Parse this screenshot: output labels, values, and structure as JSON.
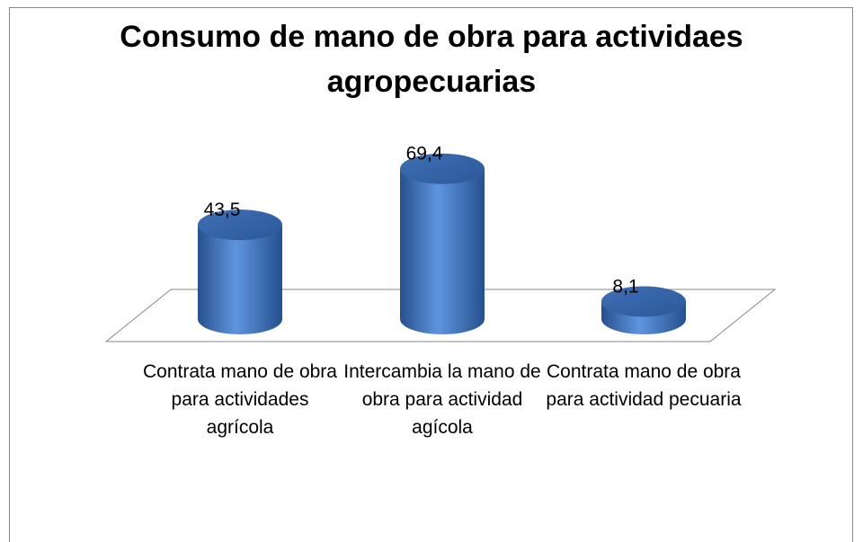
{
  "chart_data": {
    "type": "bar3d",
    "title": "Consumo de mano de obra para actividaes agropecuarias",
    "categories": [
      "Contrata mano de obra para actividades agrícola",
      "Intercambia la mano de obra para actividad agícola",
      "Contrata mano de obra para actividad pecuaria"
    ],
    "values": [
      43.5,
      69.4,
      8.1
    ],
    "value_labels": [
      "43,5",
      "69,4",
      "8,1"
    ],
    "color": "#4a7cc6"
  }
}
